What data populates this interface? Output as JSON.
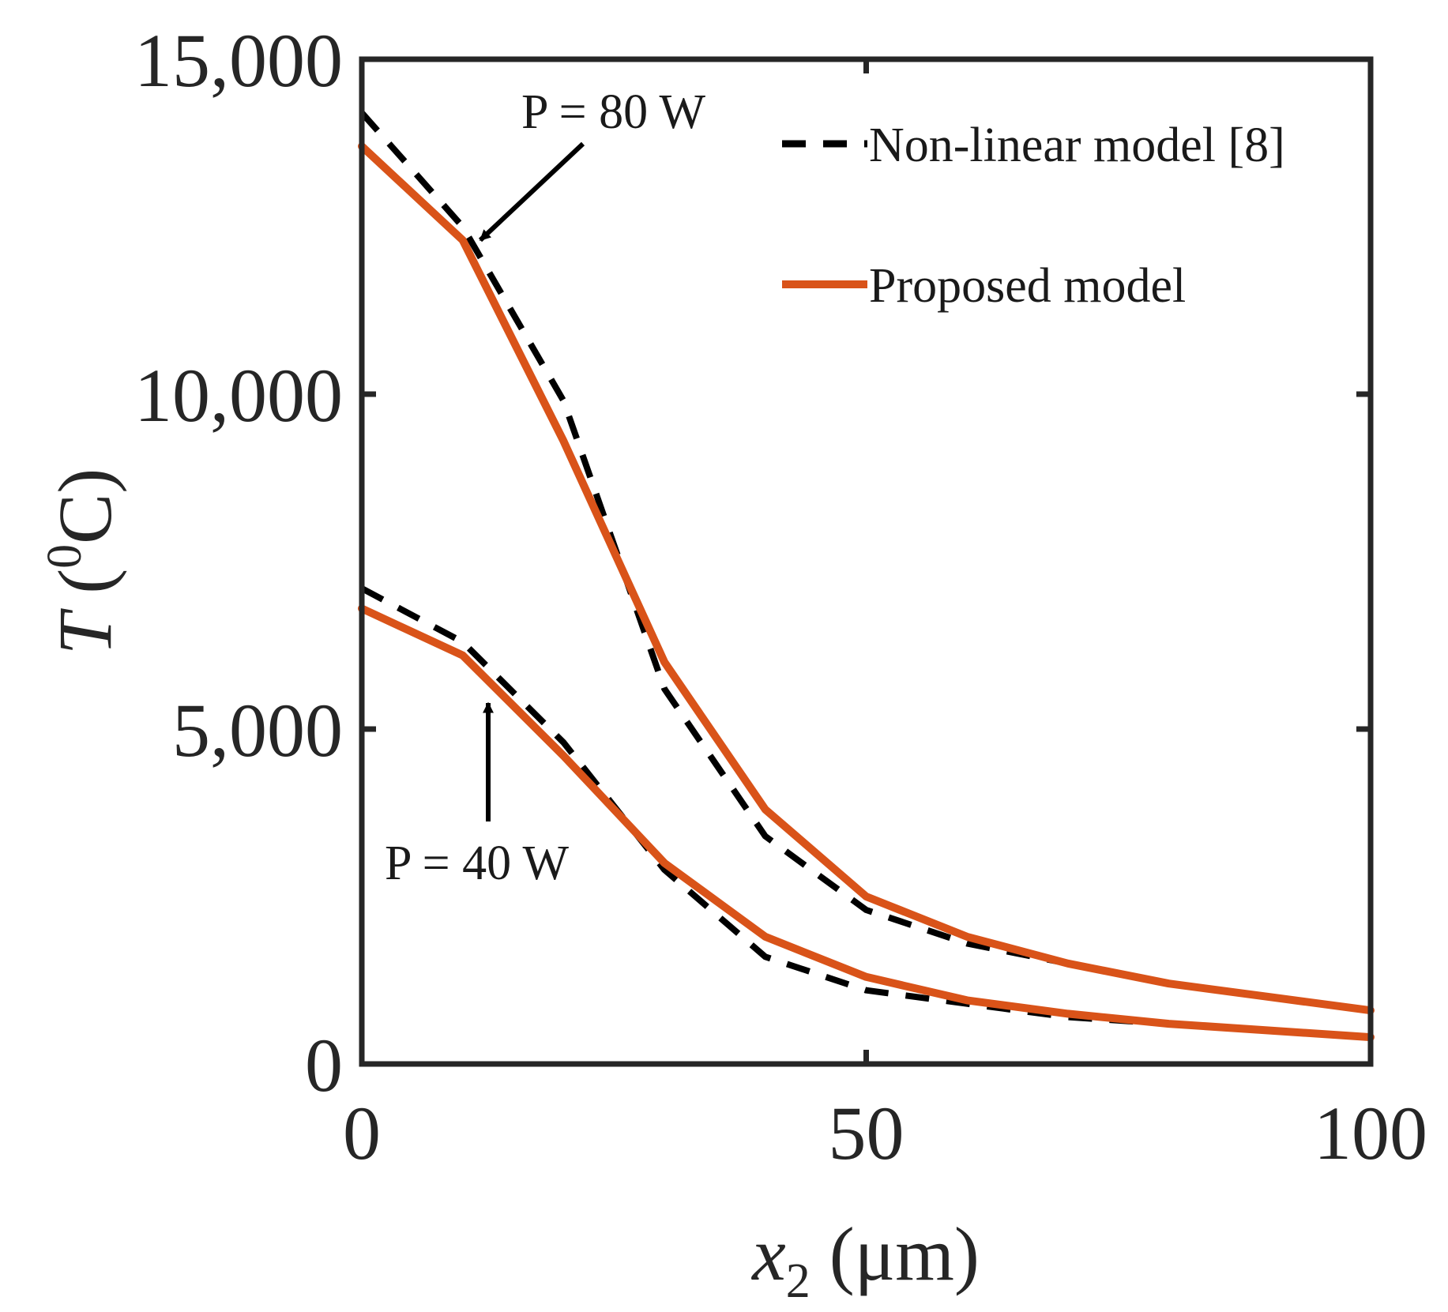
{
  "chart_data": {
    "type": "line",
    "title": "",
    "xlabel_var": "x",
    "xlabel_sub": "2",
    "xlabel_unit": " (μm)",
    "ylabel_var": "T",
    "ylabel_open": " (",
    "ylabel_sup": "0",
    "ylabel_close": "C)",
    "xlim": [
      0,
      100
    ],
    "ylim": [
      0,
      15000
    ],
    "xticks": [
      0,
      50,
      100
    ],
    "xtick_labels": [
      "0",
      "50",
      "100"
    ],
    "yticks": [
      0,
      5000,
      10000,
      15000
    ],
    "ytick_labels": [
      "0",
      "5,000",
      "10,000",
      "15,000"
    ],
    "grid": false,
    "legend_position": "top-right",
    "series": [
      {
        "name": "Non-linear model [8]",
        "group": "P = 80 W",
        "style": "dashed",
        "color": "#000000",
        "x": [
          0,
          10,
          20,
          30,
          40,
          50,
          60,
          70,
          80,
          90,
          100
        ],
        "y": [
          14200,
          12500,
          9900,
          5600,
          3400,
          2300,
          1800,
          1500,
          1200,
          1000,
          800
        ]
      },
      {
        "name": "Proposed model",
        "group": "P = 80 W",
        "style": "solid",
        "color": "#D95319",
        "x": [
          0,
          10,
          20,
          30,
          40,
          50,
          60,
          70,
          80,
          90,
          100
        ],
        "y": [
          13700,
          12300,
          9300,
          6000,
          3800,
          2500,
          1900,
          1500,
          1200,
          1000,
          800
        ]
      },
      {
        "name": "Non-linear model [8]",
        "group": "P = 40 W",
        "style": "dashed",
        "color": "#000000",
        "x": [
          0,
          10,
          20,
          30,
          40,
          50,
          60,
          70,
          80,
          90,
          100
        ],
        "y": [
          7100,
          6300,
          4800,
          2900,
          1600,
          1100,
          900,
          700,
          600,
          500,
          400
        ]
      },
      {
        "name": "Proposed model",
        "group": "P = 40 W",
        "style": "solid",
        "color": "#D95319",
        "x": [
          0,
          10,
          20,
          30,
          40,
          50,
          60,
          70,
          80,
          90,
          100
        ],
        "y": [
          6800,
          6100,
          4600,
          3000,
          1900,
          1300,
          950,
          750,
          600,
          500,
          400
        ]
      }
    ],
    "legend": [
      {
        "label": "Non-linear model [8]",
        "style": "dashed",
        "color": "#000000"
      },
      {
        "label": "Proposed model",
        "style": "solid",
        "color": "#D95319"
      }
    ],
    "annotations": [
      {
        "text": "P = 80 W",
        "arrow_tip": [
          10,
          12400
        ]
      },
      {
        "text": "P = 40 W",
        "arrow_tip": [
          12,
          5600
        ]
      }
    ]
  }
}
